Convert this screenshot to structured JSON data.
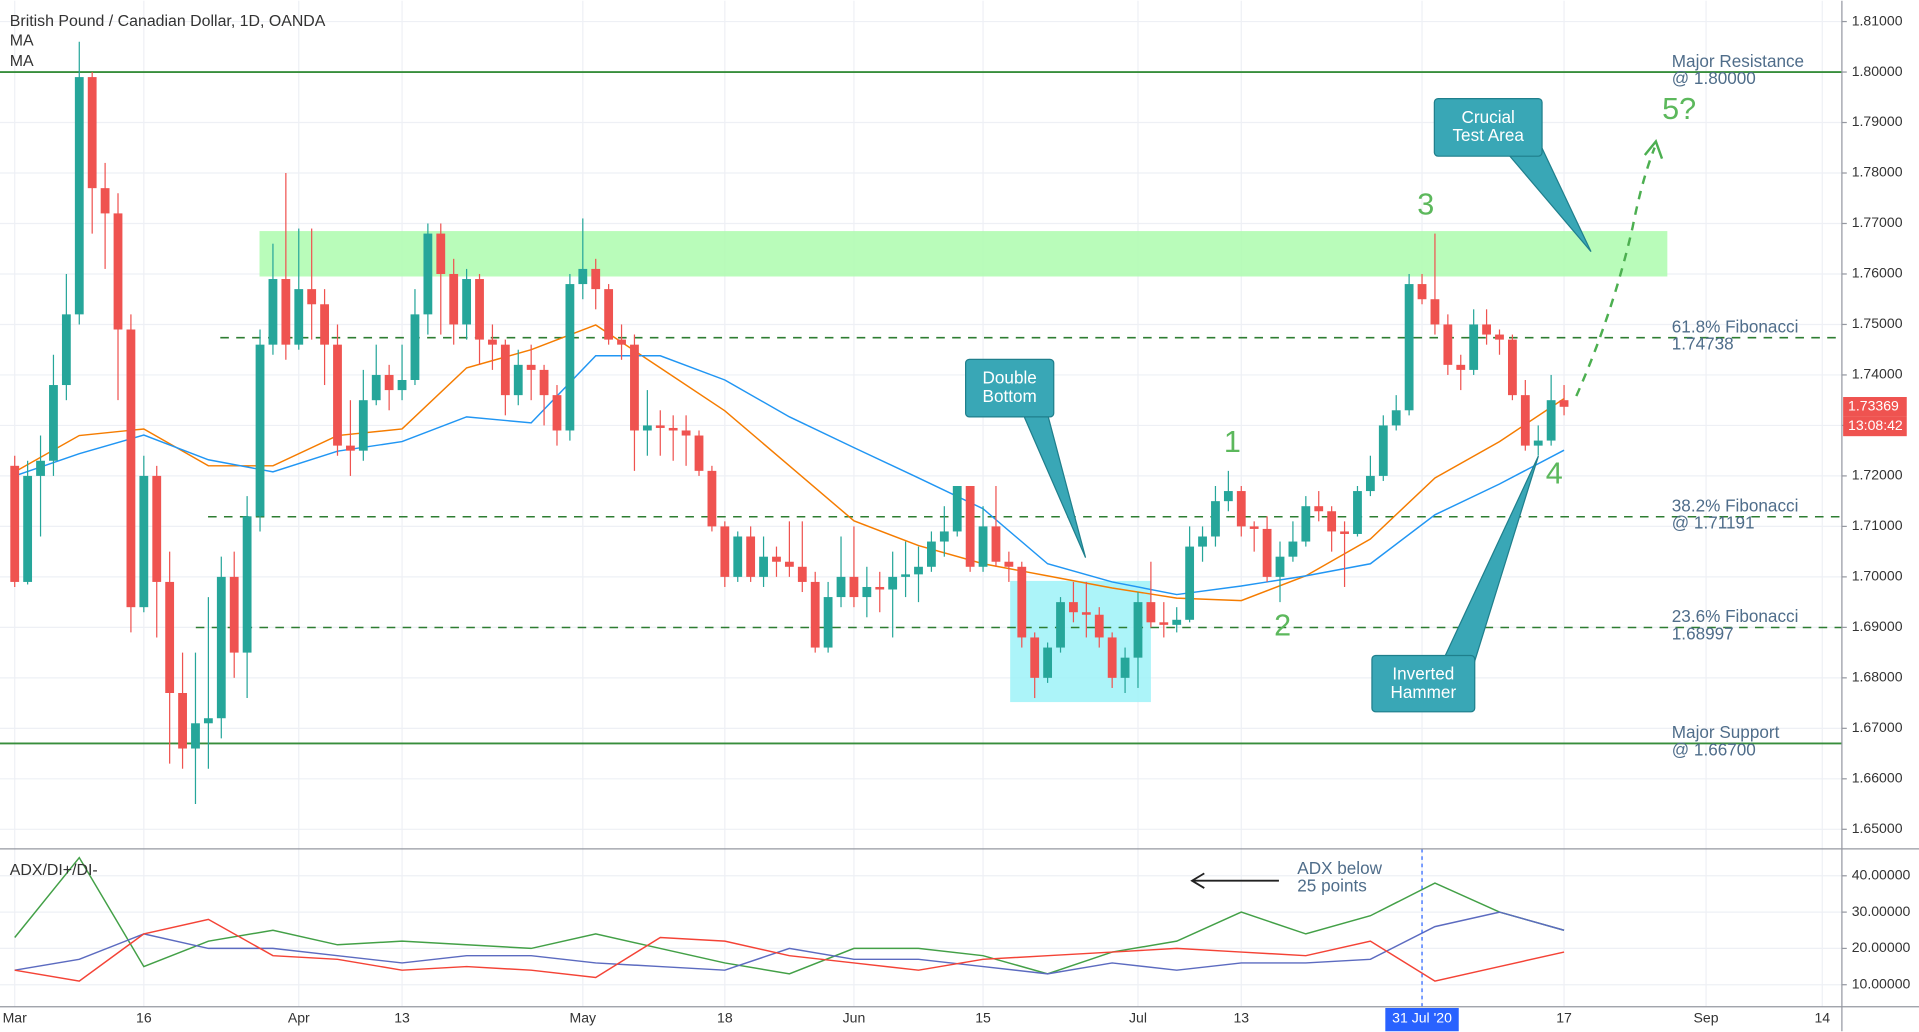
{
  "chart_data": [
    {
      "type": "candlestick",
      "title": "British Pound / Canadian Dollar, 1D, OANDA",
      "xlim": [
        -1.14,
        141.52
      ],
      "ylim": [
        1.64612,
        1.81412
      ],
      "yticks": [
        {
          "value": 1.81,
          "label": "1.81000"
        },
        {
          "value": 1.8,
          "label": "1.80000"
        },
        {
          "value": 1.79,
          "label": "1.79000"
        },
        {
          "value": 1.78,
          "label": "1.78000"
        },
        {
          "value": 1.77,
          "label": "1.77000"
        },
        {
          "value": 1.76,
          "label": "1.76000"
        },
        {
          "value": 1.75,
          "label": "1.75000"
        },
        {
          "value": 1.74,
          "label": "1.74000"
        },
        {
          "value": 1.73,
          "label": "1.73000"
        },
        {
          "value": 1.72,
          "label": "1.72000"
        },
        {
          "value": 1.71,
          "label": "1.71000"
        },
        {
          "value": 1.7,
          "label": "1.70000"
        },
        {
          "value": 1.69,
          "label": "1.69000"
        },
        {
          "value": 1.68,
          "label": "1.68000"
        },
        {
          "value": 1.67,
          "label": "1.67000"
        },
        {
          "value": 1.66,
          "label": "1.66000"
        },
        {
          "value": 1.65,
          "label": "1.65000"
        }
      ],
      "grid": true,
      "up_color": "#26a69a",
      "down_color": "#ef5350",
      "candles": {
        "x": [
          0,
          1,
          2,
          3,
          4,
          5,
          6,
          7,
          8,
          9,
          10,
          11,
          12,
          13,
          14,
          15,
          16,
          17,
          18,
          19,
          20,
          21,
          22,
          23,
          24,
          25,
          26,
          27,
          28,
          29,
          30,
          31,
          32,
          33,
          34,
          35,
          36,
          37,
          38,
          39,
          40,
          41,
          42,
          43,
          44,
          45,
          46,
          47,
          48,
          49,
          50,
          51,
          52,
          53,
          54,
          55,
          56,
          57,
          58,
          59,
          60,
          61,
          62,
          63,
          64,
          65,
          66,
          67,
          68,
          69,
          70,
          71,
          72,
          73,
          74,
          75,
          76,
          77,
          78,
          79,
          80,
          81,
          82,
          83,
          84,
          85,
          86,
          87,
          88,
          89,
          90,
          91,
          92,
          93,
          94,
          95,
          96,
          97,
          98,
          99,
          100,
          101,
          102,
          103,
          104,
          105,
          106,
          107,
          108,
          109,
          110,
          111,
          112,
          113,
          114,
          115,
          116,
          117,
          118,
          119,
          120
        ],
        "open": [
          1.722,
          1.699,
          1.72,
          1.723,
          1.738,
          1.752,
          1.799,
          1.777,
          1.772,
          1.749,
          1.694,
          1.72,
          1.699,
          1.677,
          1.666,
          1.671,
          1.672,
          1.7,
          1.685,
          1.712,
          1.746,
          1.759,
          1.746,
          1.757,
          1.754,
          1.746,
          1.726,
          1.725,
          1.735,
          1.74,
          1.737,
          1.739,
          1.752,
          1.768,
          1.76,
          1.75,
          1.759,
          1.747,
          1.746,
          1.736,
          1.742,
          1.741,
          1.736,
          1.729,
          1.758,
          1.761,
          1.757,
          1.747,
          1.746,
          1.729,
          1.73,
          1.7295,
          1.729,
          1.728,
          1.721,
          1.71,
          1.7,
          1.708,
          1.7,
          1.704,
          1.703,
          1.702,
          1.699,
          1.686,
          1.696,
          1.7,
          1.696,
          1.698,
          1.6975,
          1.7,
          1.7005,
          1.702,
          1.707,
          1.709,
          1.718,
          1.702,
          1.71,
          1.703,
          1.702,
          1.688,
          1.68,
          1.686,
          1.695,
          1.693,
          1.6925,
          1.688,
          1.68,
          1.684,
          1.695,
          1.691,
          1.6905,
          1.6915,
          1.706,
          1.708,
          1.715,
          1.717,
          1.71,
          1.7095,
          1.7,
          1.704,
          1.707,
          1.714,
          1.713,
          1.709,
          1.7085,
          1.717,
          1.72,
          1.73,
          1.733,
          1.758,
          1.755,
          1.75,
          1.742,
          1.741,
          1.75,
          1.748,
          1.747,
          1.736,
          1.726,
          1.727,
          1.735
        ],
        "high": [
          1.724,
          1.723,
          1.728,
          1.744,
          1.76,
          1.806,
          1.8,
          1.782,
          1.776,
          1.752,
          1.724,
          1.722,
          1.705,
          1.685,
          1.685,
          1.696,
          1.704,
          1.705,
          1.716,
          1.749,
          1.766,
          1.78,
          1.769,
          1.769,
          1.757,
          1.75,
          1.735,
          1.741,
          1.746,
          1.742,
          1.746,
          1.757,
          1.77,
          1.77,
          1.763,
          1.761,
          1.76,
          1.75,
          1.747,
          1.745,
          1.746,
          1.742,
          1.738,
          1.76,
          1.771,
          1.763,
          1.758,
          1.75,
          1.748,
          1.737,
          1.733,
          1.732,
          1.732,
          1.729,
          1.722,
          1.711,
          1.709,
          1.71,
          1.708,
          1.706,
          1.711,
          1.711,
          1.701,
          1.699,
          1.708,
          1.71,
          1.702,
          1.701,
          1.705,
          1.707,
          1.706,
          1.709,
          1.714,
          1.718,
          1.718,
          1.714,
          1.718,
          1.705,
          1.703,
          1.689,
          1.687,
          1.696,
          1.699,
          1.699,
          1.694,
          1.689,
          1.686,
          1.697,
          1.703,
          1.695,
          1.694,
          1.71,
          1.71,
          1.718,
          1.721,
          1.718,
          1.711,
          1.712,
          1.707,
          1.711,
          1.716,
          1.717,
          1.714,
          1.711,
          1.718,
          1.724,
          1.732,
          1.736,
          1.76,
          1.76,
          1.768,
          1.752,
          1.744,
          1.753,
          1.753,
          1.749,
          1.748,
          1.739,
          1.73,
          1.74,
          1.738
        ],
        "low": [
          1.698,
          1.6985,
          1.708,
          1.72,
          1.735,
          1.75,
          1.768,
          1.761,
          1.735,
          1.689,
          1.693,
          1.688,
          1.663,
          1.662,
          1.655,
          1.662,
          1.668,
          1.68,
          1.676,
          1.709,
          1.744,
          1.743,
          1.745,
          1.747,
          1.738,
          1.724,
          1.72,
          1.723,
          1.734,
          1.733,
          1.735,
          1.738,
          1.748,
          1.748,
          1.746,
          1.747,
          1.742,
          1.741,
          1.732,
          1.734,
          1.735,
          1.73,
          1.726,
          1.727,
          1.755,
          1.753,
          1.746,
          1.743,
          1.721,
          1.724,
          1.724,
          1.723,
          1.722,
          1.72,
          1.709,
          1.698,
          1.699,
          1.699,
          1.698,
          1.7,
          1.7,
          1.697,
          1.685,
          1.685,
          1.694,
          1.694,
          1.692,
          1.693,
          1.688,
          1.696,
          1.695,
          1.701,
          1.704,
          1.708,
          1.701,
          1.701,
          1.702,
          1.699,
          1.686,
          1.676,
          1.679,
          1.685,
          1.691,
          1.688,
          1.686,
          1.678,
          1.677,
          1.678,
          1.69,
          1.688,
          1.689,
          1.691,
          1.703,
          1.706,
          1.713,
          1.708,
          1.705,
          1.699,
          1.695,
          1.703,
          1.706,
          1.711,
          1.705,
          1.698,
          1.708,
          1.716,
          1.719,
          1.729,
          1.732,
          1.754,
          1.748,
          1.74,
          1.737,
          1.74,
          1.746,
          1.744,
          1.735,
          1.725,
          1.724,
          1.726,
          1.732
        ],
        "close": [
          1.699,
          1.72,
          1.723,
          1.738,
          1.752,
          1.799,
          1.777,
          1.772,
          1.749,
          1.694,
          1.72,
          1.699,
          1.677,
          1.666,
          1.671,
          1.672,
          1.7,
          1.685,
          1.712,
          1.746,
          1.759,
          1.746,
          1.757,
          1.754,
          1.746,
          1.726,
          1.725,
          1.735,
          1.74,
          1.737,
          1.739,
          1.752,
          1.768,
          1.76,
          1.75,
          1.759,
          1.747,
          1.746,
          1.736,
          1.742,
          1.741,
          1.736,
          1.729,
          1.758,
          1.761,
          1.757,
          1.747,
          1.746,
          1.729,
          1.73,
          1.7295,
          1.729,
          1.728,
          1.721,
          1.71,
          1.7,
          1.708,
          1.7,
          1.704,
          1.703,
          1.702,
          1.699,
          1.686,
          1.696,
          1.7,
          1.696,
          1.698,
          1.6975,
          1.7,
          1.7005,
          1.702,
          1.707,
          1.709,
          1.718,
          1.702,
          1.71,
          1.703,
          1.702,
          1.688,
          1.68,
          1.686,
          1.695,
          1.693,
          1.6925,
          1.688,
          1.68,
          1.684,
          1.695,
          1.691,
          1.6905,
          1.6915,
          1.706,
          1.708,
          1.715,
          1.717,
          1.71,
          1.7095,
          1.7,
          1.704,
          1.707,
          1.714,
          1.713,
          1.709,
          1.7085,
          1.717,
          1.72,
          1.73,
          1.733,
          1.758,
          1.755,
          1.75,
          1.742,
          1.741,
          1.75,
          1.748,
          1.747,
          1.736,
          1.726,
          1.727,
          1.735,
          1.73369
        ]
      },
      "series": [
        {
          "name": "MA",
          "color": "#f57c00",
          "x": [
            0,
            5,
            10,
            15,
            20,
            25,
            30,
            35,
            40,
            45,
            50,
            55,
            60,
            65,
            70,
            75,
            80,
            85,
            90,
            95,
            100,
            105,
            110,
            115,
            120
          ],
          "values": [
            1.7208,
            1.728,
            1.7293,
            1.722,
            1.722,
            1.728,
            1.7293,
            1.7414,
            1.745,
            1.7499,
            1.7414,
            1.7329,
            1.722,
            1.7111,
            1.7062,
            1.7026,
            1.7002,
            1.6978,
            1.6958,
            1.6953,
            1.7002,
            1.7075,
            1.7196,
            1.7268,
            1.7353
          ]
        },
        {
          "name": "MA",
          "color": "#2196f3",
          "x": [
            0,
            5,
            10,
            15,
            20,
            25,
            30,
            35,
            40,
            45,
            50,
            55,
            60,
            65,
            70,
            75,
            80,
            85,
            90,
            95,
            100,
            105,
            110,
            115,
            120
          ],
          "values": [
            1.72,
            1.7244,
            1.7281,
            1.7232,
            1.7208,
            1.7249,
            1.7268,
            1.7317,
            1.7305,
            1.7438,
            1.7438,
            1.739,
            1.7317,
            1.7256,
            1.7196,
            1.7135,
            1.7026,
            1.699,
            1.6965,
            1.6982,
            1.7002,
            1.7026,
            1.7123,
            1.7184,
            1.7251
          ]
        }
      ],
      "levels": [
        {
          "value": 1.8,
          "label": [
            "Major Resistance",
            "@ 1.80000"
          ],
          "style": "solid",
          "color": "#388e3c"
        },
        {
          "value": 1.74738,
          "label": [
            "61.8% Fibonacci",
            "1.74738"
          ],
          "style": "dashed",
          "color": "#2e7d32"
        },
        {
          "value": 1.71191,
          "label": [
            "38.2% Fibonacci",
            "@ 1.71191"
          ],
          "style": "dashed",
          "color": "#2e7d32"
        },
        {
          "value": 1.68997,
          "label": [
            "23.6% Fibonacci",
            "1.68997"
          ],
          "style": "dashed",
          "color": "#2e7d32"
        },
        {
          "value": 1.667,
          "label": [
            "Major Support",
            "@ 1.66700"
          ],
          "style": "solid",
          "color": "#388e3c"
        }
      ],
      "zones": [
        {
          "range": [
            1.7595,
            1.7685
          ],
          "x": [
            18.96,
            128
          ],
          "color": "#adfcae"
        },
        {
          "range": [
            1.6752,
            1.6992
          ],
          "x": [
            77.1,
            88.0
          ],
          "color": "#9df2f8"
        }
      ],
      "waves": [
        "1",
        "2",
        "3",
        "4",
        "5?"
      ],
      "callouts": [
        {
          "lines": [
            "Crucial",
            "Test Area"
          ]
        },
        {
          "lines": [
            "Double",
            "Bottom"
          ]
        },
        {
          "lines": [
            "Inverted",
            "Hammer"
          ]
        }
      ],
      "last_price": 1.73369,
      "last_price_time": "13:08:42"
    },
    {
      "type": "line",
      "title": "ADX/DI+/DI-",
      "xlim": [
        -1.14,
        141.52
      ],
      "ylim": [
        3.93,
        47.41
      ],
      "yticks": [
        {
          "value": 40,
          "label": "40.00000"
        },
        {
          "value": 30,
          "label": "30.00000"
        },
        {
          "value": 20,
          "label": "20.00000"
        },
        {
          "value": 10,
          "label": "10.00000"
        }
      ],
      "xticks": [
        {
          "value": 0,
          "label": "Mar"
        },
        {
          "value": 10,
          "label": "16"
        },
        {
          "value": 22,
          "label": "Apr"
        },
        {
          "value": 30,
          "label": "13"
        },
        {
          "value": 44,
          "label": "May"
        },
        {
          "value": 55,
          "label": "18"
        },
        {
          "value": 65,
          "label": "Jun"
        },
        {
          "value": 75,
          "label": "15"
        },
        {
          "value": 87,
          "label": "Jul"
        },
        {
          "value": 95,
          "label": "13"
        },
        {
          "value": 109,
          "label": "31 Jul '20",
          "highlight": true
        },
        {
          "value": 120,
          "label": "17"
        },
        {
          "value": 131,
          "label": "Sep"
        },
        {
          "value": 140,
          "label": "14"
        }
      ],
      "series": [
        {
          "color": "#43a047",
          "x": [
            0,
            5,
            10,
            15,
            20,
            25,
            30,
            35,
            40,
            45,
            50,
            55,
            60,
            65,
            70,
            75,
            80,
            85,
            90,
            95,
            100,
            105,
            110,
            115,
            120
          ],
          "values": [
            23,
            45,
            15,
            22,
            25,
            21,
            22,
            21,
            20,
            24,
            20,
            16,
            13,
            20,
            20,
            18,
            13,
            19,
            22,
            30,
            24,
            29,
            38,
            30,
            25
          ]
        },
        {
          "color": "#5c6bc0",
          "x": [
            0,
            5,
            10,
            15,
            20,
            25,
            30,
            35,
            40,
            45,
            50,
            55,
            60,
            65,
            70,
            75,
            80,
            85,
            90,
            95,
            100,
            105,
            110,
            115,
            120
          ],
          "values": [
            14,
            17,
            24,
            20,
            20,
            18,
            16,
            18,
            18,
            16,
            15,
            14,
            20,
            17,
            17,
            15,
            13,
            16,
            14,
            16,
            16,
            17,
            26,
            30,
            25
          ]
        },
        {
          "color": "#f44336",
          "x": [
            0,
            5,
            10,
            15,
            20,
            25,
            30,
            35,
            40,
            45,
            50,
            55,
            60,
            65,
            70,
            75,
            80,
            85,
            90,
            95,
            100,
            105,
            110,
            115,
            120
          ],
          "values": [
            14,
            11,
            24,
            28,
            18,
            17,
            14,
            15,
            14,
            12,
            23,
            22,
            18,
            16,
            14,
            17,
            18,
            19,
            20,
            19,
            18,
            22,
            11,
            15,
            19
          ]
        }
      ],
      "note": [
        "ADX below",
        "25 points"
      ]
    }
  ]
}
